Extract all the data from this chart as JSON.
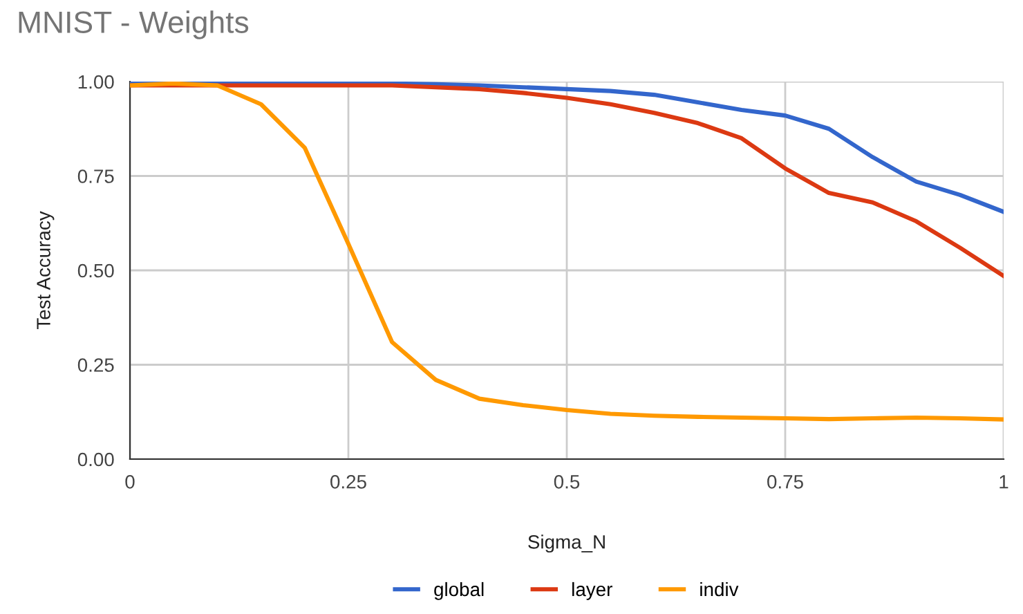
{
  "chart_data": {
    "type": "line",
    "title": "MNIST - Weights",
    "xlabel": "Sigma_N",
    "ylabel": "Test Accuracy",
    "x": [
      0,
      0.05,
      0.1,
      0.15,
      0.2,
      0.25,
      0.3,
      0.35,
      0.4,
      0.45,
      0.5,
      0.55,
      0.6,
      0.65,
      0.7,
      0.75,
      0.8,
      0.85,
      0.9,
      0.95,
      1
    ],
    "series": [
      {
        "name": "global",
        "color": "#3366cc",
        "values": [
          0.995,
          0.995,
          0.995,
          0.995,
          0.995,
          0.995,
          0.995,
          0.993,
          0.99,
          0.985,
          0.98,
          0.975,
          0.965,
          0.945,
          0.925,
          0.91,
          0.875,
          0.8,
          0.735,
          0.7,
          0.655
        ]
      },
      {
        "name": "layer",
        "color": "#dc3912",
        "values": [
          0.99,
          0.99,
          0.99,
          0.99,
          0.99,
          0.99,
          0.99,
          0.985,
          0.98,
          0.97,
          0.957,
          0.94,
          0.917,
          0.89,
          0.85,
          0.77,
          0.705,
          0.68,
          0.63,
          0.56,
          0.485
        ]
      },
      {
        "name": "indiv",
        "color": "#ff9900",
        "values": [
          0.99,
          0.995,
          0.99,
          0.94,
          0.825,
          0.57,
          0.31,
          0.21,
          0.16,
          0.143,
          0.13,
          0.12,
          0.115,
          0.112,
          0.11,
          0.108,
          0.106,
          0.108,
          0.11,
          0.108,
          0.105
        ]
      }
    ],
    "xlim": [
      0,
      1
    ],
    "xticks": [
      0,
      0.25,
      0.5,
      0.75,
      1
    ],
    "ylim": [
      0,
      1
    ],
    "yticks": [
      {
        "value": 0,
        "label": "0.00"
      },
      {
        "value": 0.25,
        "label": "0.25"
      },
      {
        "value": 0.5,
        "label": "0.50"
      },
      {
        "value": 0.75,
        "label": "0.75"
      },
      {
        "value": 1,
        "label": "1.00"
      }
    ],
    "grid": true,
    "legend": "bottom",
    "marker": "none",
    "line_style": "solid"
  }
}
